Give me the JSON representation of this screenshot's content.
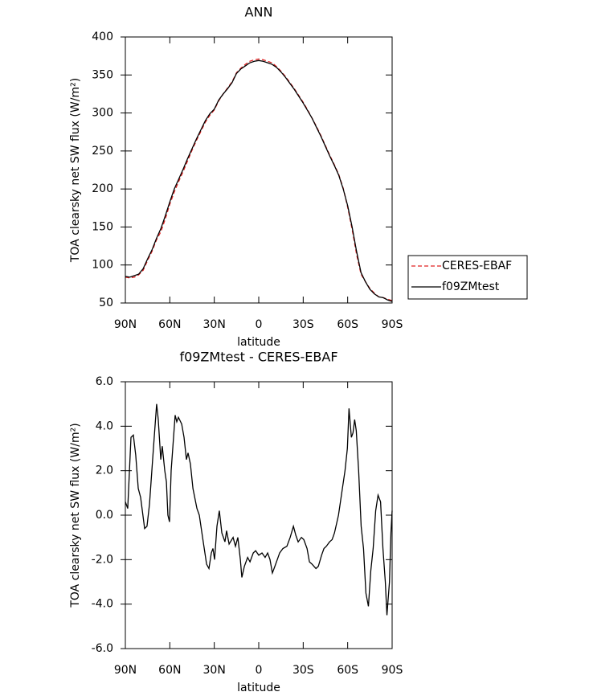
{
  "chart_data": [
    {
      "type": "line",
      "title": "ANN",
      "xlabel": "latitude",
      "ylabel": "TOA clearsky net SW flux (W/m²)",
      "x": [
        90,
        87,
        84,
        81,
        78,
        75,
        72,
        69,
        66,
        63,
        60,
        57,
        54,
        51,
        48,
        45,
        42,
        39,
        36,
        33,
        30,
        27,
        24,
        21,
        18,
        15,
        12,
        9,
        6,
        3,
        0,
        -3,
        -6,
        -9,
        -12,
        -15,
        -18,
        -21,
        -24,
        -27,
        -30,
        -33,
        -36,
        -39,
        -42,
        -45,
        -48,
        -51,
        -54,
        -57,
        -60,
        -63,
        -66,
        -69,
        -72,
        -75,
        -78,
        -81,
        -84,
        -87,
        -90
      ],
      "series": [
        {
          "name": "CERES-EBAF",
          "color": "#e02020",
          "dash": "dashed",
          "values": [
            84,
            83,
            84,
            87,
            93,
            106,
            118,
            133,
            144,
            161,
            180,
            196,
            210,
            223,
            237,
            251,
            264,
            276,
            288,
            297,
            304,
            316,
            325,
            333,
            341,
            353,
            359,
            364,
            368,
            370,
            371,
            370,
            368,
            366,
            361,
            355,
            348,
            340,
            332,
            323,
            314,
            304,
            293,
            282,
            270,
            257,
            244,
            232,
            219,
            201,
            176,
            147,
            114,
            88,
            78,
            69,
            63,
            58,
            57,
            55,
            53
          ]
        },
        {
          "name": "f09ZMtest",
          "color": "#000000",
          "dash": "solid",
          "values": [
            85,
            84,
            86,
            88,
            95,
            108,
            120,
            135,
            148,
            165,
            183,
            200,
            213,
            226,
            240,
            253,
            266,
            278,
            290,
            299,
            305,
            317,
            325,
            332,
            340,
            352,
            358,
            362,
            366,
            368,
            369,
            368,
            366,
            364,
            360,
            354,
            347,
            339,
            331,
            322,
            313,
            303,
            293,
            281,
            269,
            256,
            243,
            231,
            218,
            200,
            178,
            150,
            118,
            90,
            78,
            68,
            62,
            58,
            57,
            54,
            52
          ]
        }
      ],
      "xlim": [
        90,
        -90
      ],
      "xticks": [
        {
          "value": 90,
          "label": "90N"
        },
        {
          "value": 60,
          "label": "60N"
        },
        {
          "value": 30,
          "label": "30N"
        },
        0,
        {
          "value": -30,
          "label": "30S"
        },
        {
          "value": -60,
          "label": "60S"
        },
        {
          "value": -90,
          "label": "90S"
        }
      ],
      "ylim": [
        50,
        400
      ],
      "yticks": [
        50,
        100,
        150,
        200,
        250,
        300,
        350,
        400
      ],
      "legend": "right"
    },
    {
      "type": "line",
      "title": "f09ZMtest - CERES-EBAF",
      "xlabel": "latitude",
      "ylabel": "TOA clearsky net SW flux (W/m²)",
      "x": [
        90,
        88.4,
        86.2,
        84.6,
        83.0,
        81.3,
        79.7,
        77.0,
        75.4,
        73.7,
        71.6,
        68.9,
        67.8,
        66.1,
        65.1,
        63.4,
        62.3,
        61.3,
        60.2,
        59.1,
        56.4,
        55.3,
        54.2,
        52.0,
        50.4,
        48.8,
        47.7,
        46.1,
        44.4,
        41.7,
        40.1,
        37.9,
        35.2,
        33.6,
        32.0,
        30.9,
        29.8,
        28.2,
        26.6,
        24.9,
        22.8,
        21.7,
        20.0,
        17.3,
        15.7,
        14.1,
        12.4,
        11.4,
        9.7,
        7.5,
        5.9,
        3.7,
        2.1,
        0,
        -2.2,
        -4.3,
        -6.0,
        -7.6,
        -9.2,
        -10.9,
        -12.5,
        -14.1,
        -16.3,
        -19.0,
        -21.2,
        -23.4,
        -25.0,
        -26.6,
        -28.8,
        -30.4,
        -32.6,
        -34.2,
        -35.9,
        -38.6,
        -40.2,
        -42.4,
        -44.0,
        -45.6,
        -47.8,
        -49.5,
        -51.1,
        -53.8,
        -56.0,
        -58.2,
        -59.8,
        -60.9,
        -62.5,
        -63.6,
        -64.7,
        -65.8,
        -67.4,
        -69.1,
        -70.7,
        -72.3,
        -74.0,
        -75.6,
        -77.2,
        -78.9,
        -80.5,
        -82.2,
        -83.8,
        -85.4,
        -86.5,
        -88.2,
        -89.2,
        -90
      ],
      "values": [
        0.6,
        0.3,
        3.5,
        3.6,
        2.7,
        1.2,
        0.8,
        -0.6,
        -0.5,
        0.5,
        2.5,
        5.0,
        4.3,
        2.5,
        3.1,
        2.0,
        1.5,
        0.0,
        -0.3,
        2.0,
        4.5,
        4.2,
        4.4,
        4.1,
        3.5,
        2.5,
        2.8,
        2.3,
        1.2,
        0.3,
        0.0,
        -1.0,
        -2.2,
        -2.4,
        -1.7,
        -1.5,
        -2.0,
        -0.5,
        0.2,
        -0.8,
        -1.2,
        -0.7,
        -1.3,
        -1.0,
        -1.4,
        -1.0,
        -2.0,
        -2.8,
        -2.3,
        -1.9,
        -2.1,
        -1.7,
        -1.6,
        -1.8,
        -1.7,
        -1.9,
        -1.7,
        -2.0,
        -2.6,
        -2.3,
        -2.0,
        -1.7,
        -1.5,
        -1.4,
        -1.0,
        -0.5,
        -0.9,
        -1.2,
        -1.0,
        -1.1,
        -1.5,
        -2.1,
        -2.2,
        -2.4,
        -2.3,
        -1.8,
        -1.5,
        -1.4,
        -1.2,
        -1.1,
        -0.8,
        0.0,
        1.0,
        2.0,
        3.0,
        4.8,
        3.5,
        3.7,
        4.3,
        3.8,
        2.0,
        -0.5,
        -1.5,
        -3.5,
        -4.1,
        -2.5,
        -1.5,
        0.2,
        0.9,
        0.6,
        -1.5,
        -3.0,
        -4.5,
        -3.0,
        -0.8,
        0.2
      ],
      "color": "#000000",
      "xlim": [
        90,
        -90
      ],
      "xticks": [
        {
          "value": 90,
          "label": "90N"
        },
        {
          "value": 60,
          "label": "60N"
        },
        {
          "value": 30,
          "label": "30N"
        },
        0,
        {
          "value": -30,
          "label": "30S"
        },
        {
          "value": -60,
          "label": "60S"
        },
        {
          "value": -90,
          "label": "90S"
        }
      ],
      "ylim": [
        -6,
        6
      ],
      "yticks": [
        {
          "value": -6,
          "label": "-6.0"
        },
        {
          "value": -4,
          "label": "-4.0"
        },
        {
          "value": -2,
          "label": "-2.0"
        },
        {
          "value": 0,
          "label": "0.0"
        },
        {
          "value": 2,
          "label": "2.0"
        },
        {
          "value": 4,
          "label": "4.0"
        },
        {
          "value": 6,
          "label": "6.0"
        }
      ]
    }
  ]
}
